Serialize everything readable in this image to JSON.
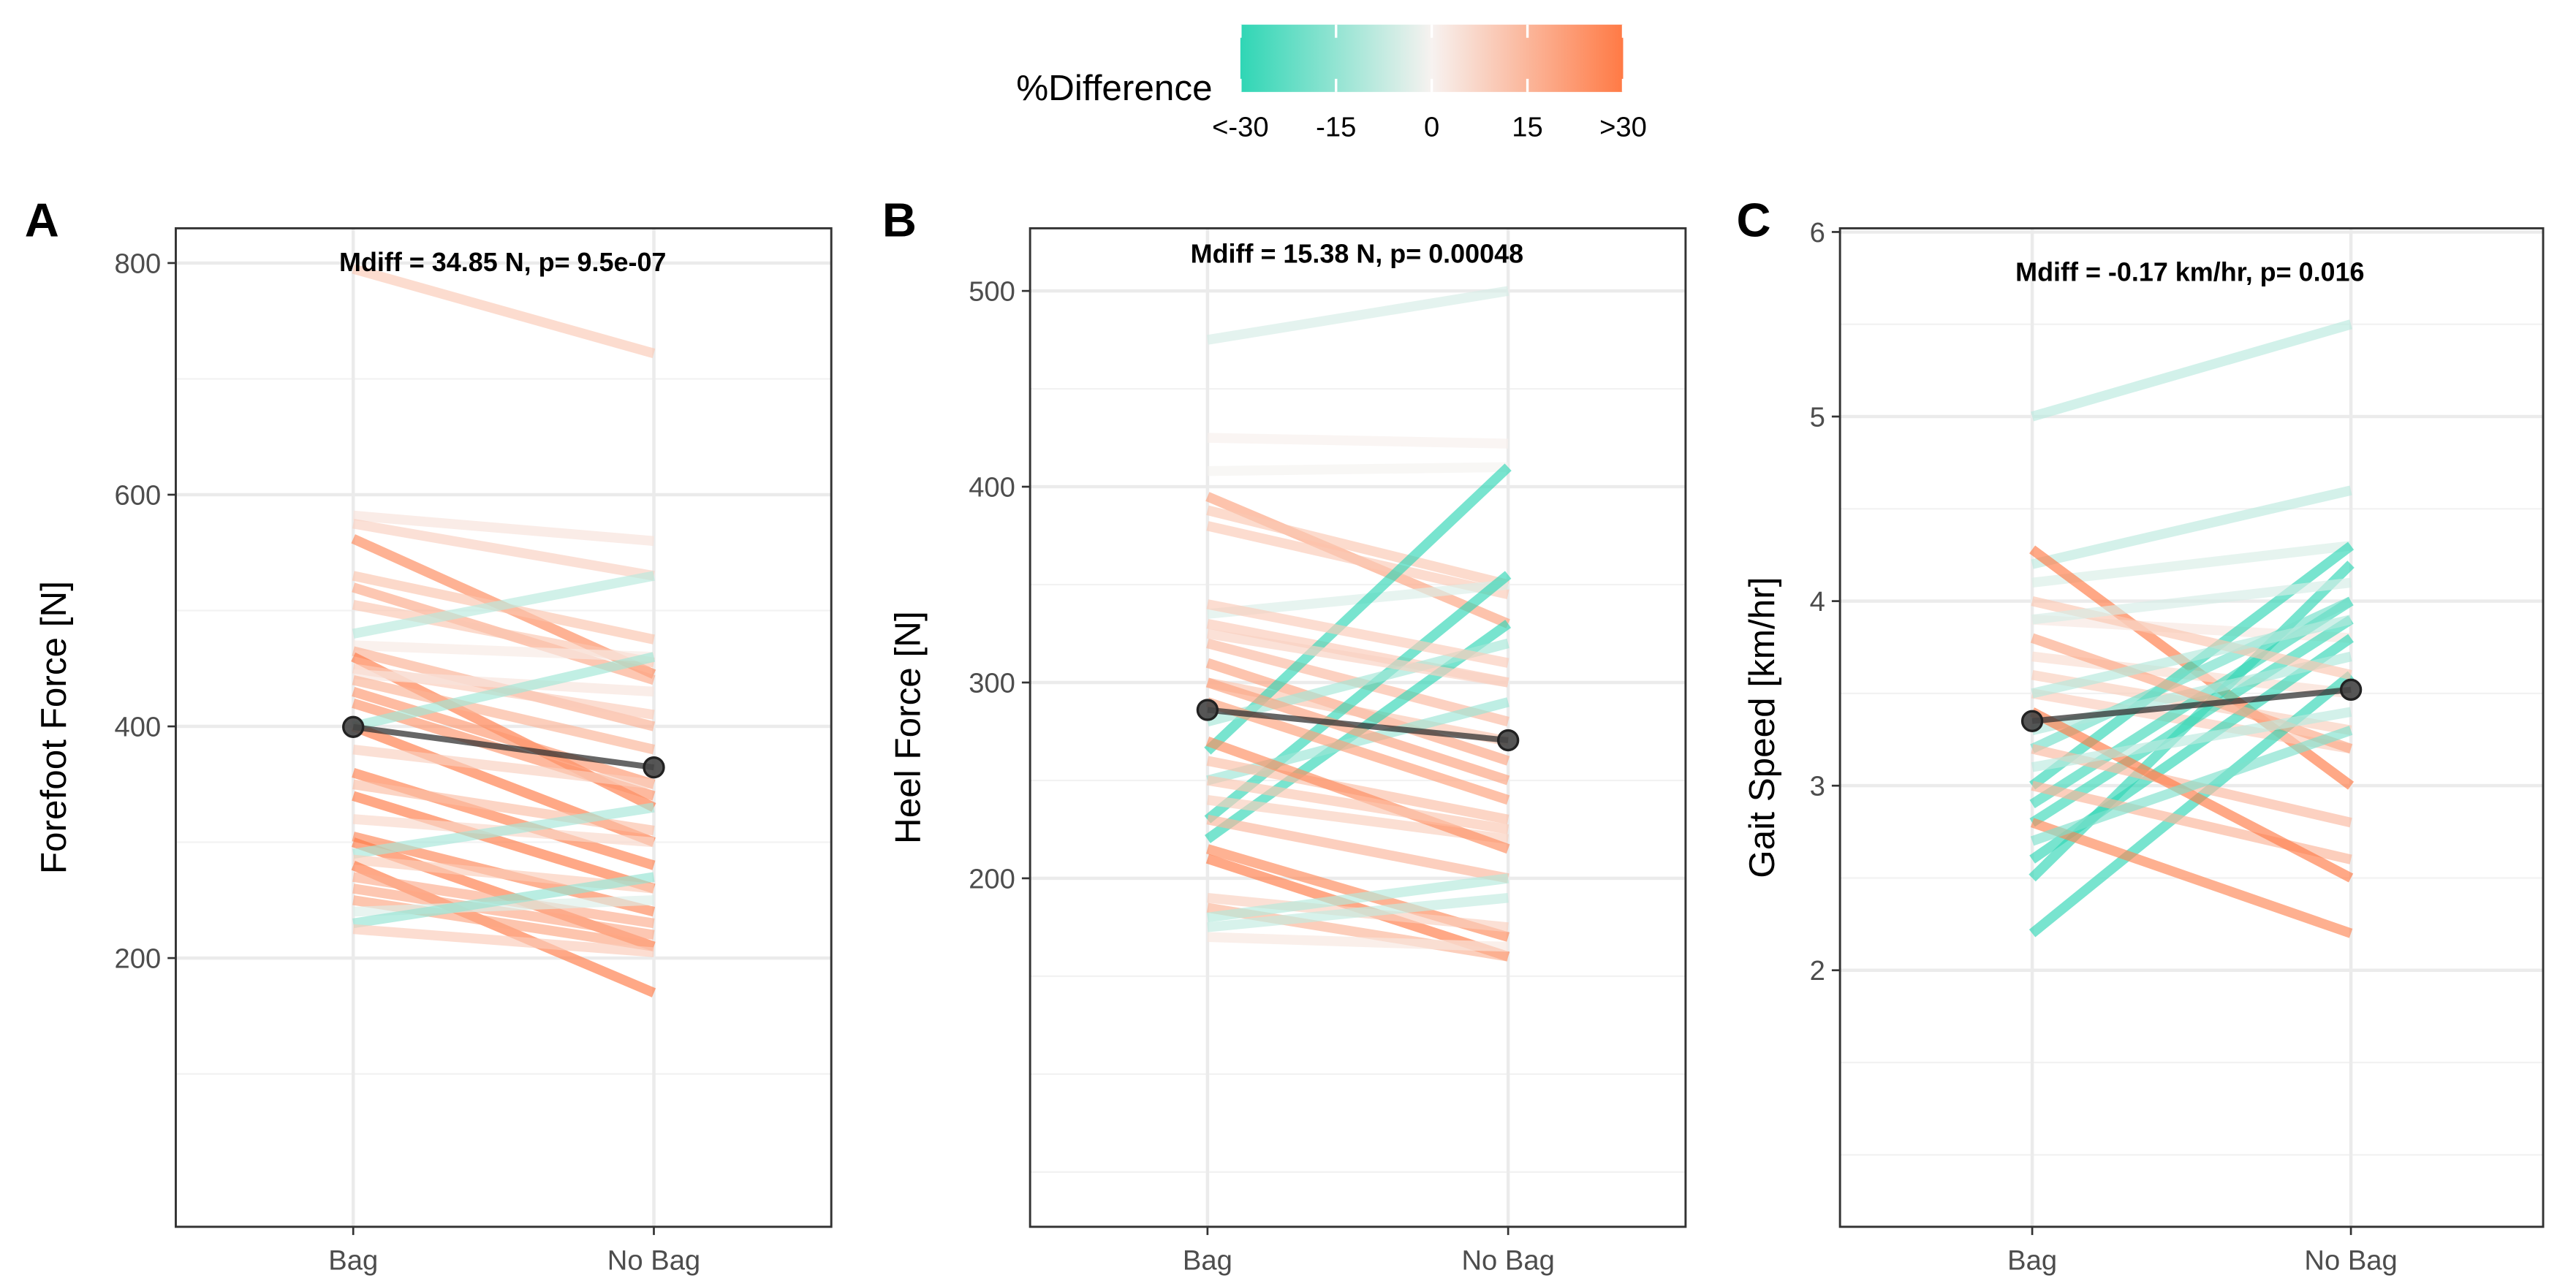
{
  "legend": {
    "title": "%Difference",
    "ticks": [
      "<-30",
      "-15",
      "0",
      "15",
      ">30"
    ],
    "tick_values": [
      -30,
      -15,
      0,
      15,
      30
    ],
    "colors": {
      "low": "#2fd6b5",
      "mid": "#f7f2f0",
      "high": "#ff7a45"
    }
  },
  "chart_data": [
    {
      "type": "line",
      "panel_label": "A",
      "annotation": "Mdiff =  34.85  N, p= 9.5e-07",
      "ylabel": "Forefoot Force [N]",
      "categories": [
        "Bag",
        "No Bag"
      ],
      "yticks": [
        200,
        400,
        600,
        800
      ],
      "ylim": [
        -32,
        830
      ],
      "grid": true,
      "mean": [
        399.5,
        364.6
      ],
      "pairs": [
        [
          795,
          722
        ],
        [
          582,
          560
        ],
        [
          575,
          530
        ],
        [
          562,
          445
        ],
        [
          530,
          475
        ],
        [
          520,
          440
        ],
        [
          505,
          455
        ],
        [
          480,
          530
        ],
        [
          470,
          460
        ],
        [
          465,
          400
        ],
        [
          460,
          330
        ],
        [
          450,
          410
        ],
        [
          445,
          430
        ],
        [
          440,
          380
        ],
        [
          430,
          350
        ],
        [
          420,
          340
        ],
        [
          400,
          300
        ],
        [
          400,
          460
        ],
        [
          380,
          350
        ],
        [
          360,
          280
        ],
        [
          350,
          310
        ],
        [
          340,
          260
        ],
        [
          320,
          300
        ],
        [
          305,
          240
        ],
        [
          300,
          210
        ],
        [
          290,
          330
        ],
        [
          285,
          260
        ],
        [
          280,
          170
        ],
        [
          270,
          230
        ],
        [
          260,
          220
        ],
        [
          250,
          210
        ],
        [
          240,
          250
        ],
        [
          230,
          270
        ],
        [
          225,
          205
        ]
      ]
    },
    {
      "type": "line",
      "panel_label": "B",
      "annotation": "Mdiff =  15.38  N, p= 0.00048",
      "ylabel": "Heel Force [N]",
      "categories": [
        "Bag",
        "No Bag"
      ],
      "yticks": [
        200,
        300,
        400,
        500
      ],
      "ylim": [
        22,
        532
      ],
      "grid": true,
      "mean": [
        286,
        270.5
      ],
      "pairs": [
        [
          475,
          500
        ],
        [
          425,
          422
        ],
        [
          408,
          410
        ],
        [
          395,
          330
        ],
        [
          380,
          345
        ],
        [
          388,
          350
        ],
        [
          335,
          350
        ],
        [
          330,
          300
        ],
        [
          320,
          280
        ],
        [
          310,
          260
        ],
        [
          300,
          270
        ],
        [
          265,
          410
        ],
        [
          230,
          355
        ],
        [
          220,
          330
        ],
        [
          280,
          320
        ],
        [
          250,
          290
        ],
        [
          240,
          220
        ],
        [
          230,
          200
        ],
        [
          215,
          170
        ],
        [
          210,
          160
        ],
        [
          190,
          175
        ],
        [
          185,
          160
        ],
        [
          180,
          200
        ],
        [
          175,
          190
        ],
        [
          170,
          165
        ],
        [
          260,
          230
        ],
        [
          270,
          215
        ],
        [
          290,
          240
        ],
        [
          300,
          250
        ],
        [
          250,
          225
        ],
        [
          325,
          300
        ],
        [
          340,
          310
        ]
      ]
    },
    {
      "type": "line",
      "panel_label": "C",
      "annotation": "Mdiff =  -0.17  km/hr, p= 0.016",
      "ylabel": "Gait Speed [km/hr]",
      "categories": [
        "Bag",
        "No Bag"
      ],
      "yticks": [
        2,
        3,
        4,
        5,
        6
      ],
      "ylim": [
        0.61,
        6.02
      ],
      "grid": true,
      "mean": [
        3.35,
        3.52
      ],
      "pairs": [
        [
          5.0,
          5.5
        ],
        [
          4.2,
          4.6
        ],
        [
          4.1,
          4.3
        ],
        [
          4.28,
          3.0
        ],
        [
          3.9,
          3.8
        ],
        [
          3.7,
          3.5
        ],
        [
          3.6,
          3.3
        ],
        [
          3.5,
          3.2
        ],
        [
          3.0,
          4.3
        ],
        [
          2.9,
          4.0
        ],
        [
          2.5,
          4.2
        ],
        [
          2.2,
          3.6
        ],
        [
          2.6,
          3.8
        ],
        [
          2.8,
          3.9
        ],
        [
          3.2,
          4.0
        ],
        [
          3.3,
          3.7
        ],
        [
          2.8,
          2.2
        ],
        [
          3.0,
          2.6
        ],
        [
          3.2,
          2.8
        ],
        [
          3.4,
          2.5
        ],
        [
          3.8,
          3.2
        ],
        [
          4.0,
          3.6
        ],
        [
          3.1,
          3.4
        ],
        [
          2.7,
          3.3
        ],
        [
          3.5,
          3.9
        ],
        [
          3.9,
          4.1
        ]
      ]
    }
  ]
}
